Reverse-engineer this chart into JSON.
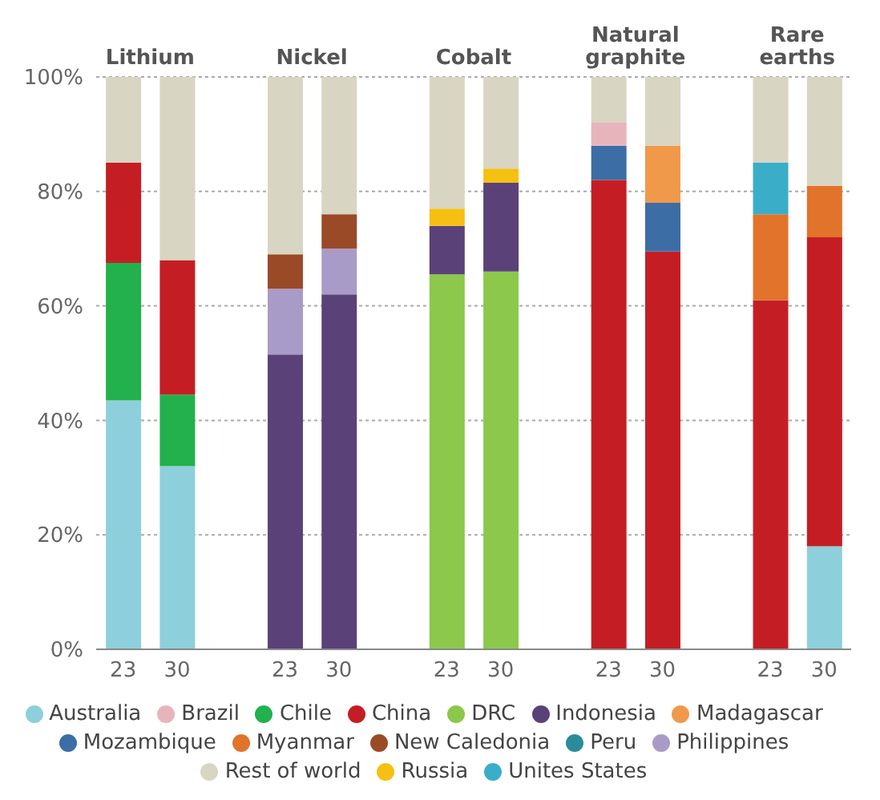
{
  "chart_data": {
    "type": "bar",
    "stacked": true,
    "categories": [
      "23",
      "30",
      null,
      "23",
      "30",
      null,
      "23",
      "30",
      null,
      "23",
      "30",
      null,
      "23",
      "30"
    ],
    "annotations": [
      "Lithium",
      "Nickel",
      "Cobalt",
      "Natural\ngraphite",
      "Rare\nearths"
    ],
    "series": [
      {
        "name": "Australia",
        "color": "#8ecfdc",
        "values": [
          43.5,
          32,
          null,
          null,
          null,
          null,
          null,
          null,
          null,
          null,
          null,
          null,
          null,
          18
        ]
      },
      {
        "name": "Chile",
        "color": "#22b14c",
        "values": [
          24,
          12.5,
          null,
          null,
          null,
          null,
          null,
          null,
          null,
          null,
          null,
          null,
          null,
          null
        ]
      },
      {
        "name": "DRC",
        "color": "#8cc84b",
        "values": [
          null,
          null,
          null,
          null,
          null,
          null,
          65.5,
          66,
          null,
          null,
          null,
          null,
          null,
          null
        ]
      },
      {
        "name": "Indonesia",
        "color": "#5a4279",
        "values": [
          null,
          null,
          null,
          51.5,
          62,
          null,
          8.5,
          15.5,
          null,
          null,
          null,
          null,
          null,
          null
        ]
      },
      {
        "name": "China",
        "color": "#c41e24",
        "values": [
          17.5,
          23.5,
          null,
          null,
          null,
          null,
          null,
          null,
          null,
          82,
          69.5,
          null,
          61,
          54
        ]
      },
      {
        "name": "Philippines",
        "color": "#a99bc8",
        "values": [
          null,
          null,
          null,
          11.5,
          8,
          null,
          null,
          null,
          null,
          null,
          null,
          null,
          null,
          null
        ]
      },
      {
        "name": "New Caledonia",
        "color": "#9a4a26",
        "values": [
          null,
          null,
          null,
          6,
          6,
          null,
          null,
          null,
          null,
          null,
          null,
          null,
          null,
          null
        ]
      },
      {
        "name": "Russia",
        "color": "#f5c012",
        "values": [
          null,
          null,
          null,
          null,
          null,
          null,
          3,
          2.5,
          null,
          null,
          null,
          null,
          null,
          null
        ]
      },
      {
        "name": "Mozambique",
        "color": "#3c6ea5",
        "values": [
          null,
          null,
          null,
          null,
          null,
          null,
          null,
          null,
          null,
          6,
          8.5,
          null,
          null,
          null
        ]
      },
      {
        "name": "Brazil",
        "color": "#e8b4bc",
        "values": [
          null,
          null,
          null,
          null,
          null,
          null,
          null,
          null,
          null,
          4,
          null,
          null,
          null,
          null
        ]
      },
      {
        "name": "Myanmar",
        "color": "#e2732a",
        "values": [
          null,
          null,
          null,
          null,
          null,
          null,
          null,
          null,
          null,
          null,
          null,
          null,
          15,
          9
        ]
      },
      {
        "name": "Madagascar",
        "color": "#f0994a",
        "values": [
          null,
          null,
          null,
          null,
          null,
          null,
          null,
          null,
          null,
          null,
          10,
          null,
          null,
          null
        ]
      },
      {
        "name": "Unites States",
        "color": "#3aaec8",
        "values": [
          null,
          null,
          null,
          null,
          null,
          null,
          null,
          null,
          null,
          null,
          null,
          null,
          9,
          null
        ]
      },
      {
        "name": "Peru",
        "color": "#2a8c9a",
        "values": [
          null,
          null,
          null,
          null,
          null,
          null,
          null,
          null,
          null,
          null,
          null,
          null,
          null,
          null
        ]
      },
      {
        "name": "Rest of world",
        "color": "#d9d5c3",
        "values": [
          15,
          32,
          null,
          31,
          24,
          null,
          23,
          16,
          null,
          8,
          12,
          null,
          15,
          19
        ]
      }
    ],
    "ylim": [
      0,
      100
    ],
    "yticks": [
      {
        "value": 0,
        "label": "0%"
      },
      {
        "value": 20,
        "label": "20%"
      },
      {
        "value": 40,
        "label": "40%"
      },
      {
        "value": 60,
        "label": "60%"
      },
      {
        "value": 80,
        "label": "80%"
      },
      {
        "value": 100,
        "label": "100%"
      }
    ],
    "grid": "y",
    "legend": "bottom"
  }
}
